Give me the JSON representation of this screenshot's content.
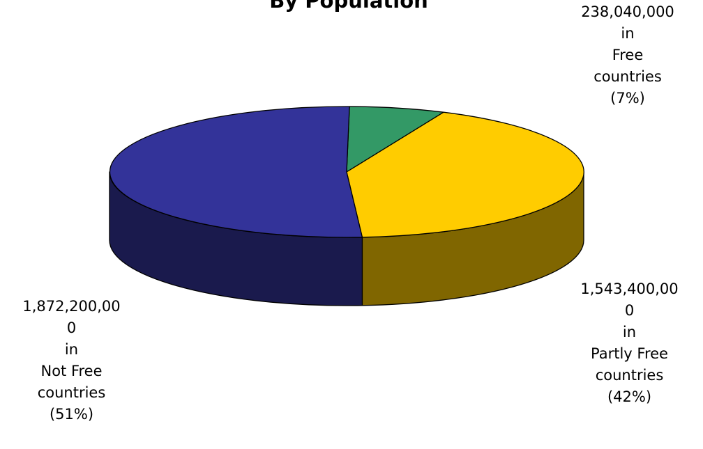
{
  "chart_data": {
    "type": "pie",
    "title": "By Population",
    "slices": [
      {
        "name": "Free",
        "value": 238040000,
        "value_text": "238,040,000",
        "percent": 7,
        "label_lines": [
          "238,040,000",
          "in",
          "Free",
          "countries",
          "(7%)"
        ],
        "top_color": "#339966",
        "side_color": "#1a4d33"
      },
      {
        "name": "Partly Free",
        "value": 1543400000,
        "value_text": "1,543,400,000",
        "percent": 42,
        "label_lines": [
          "1,543,400,00",
          "0",
          "in",
          "Partly Free",
          "countries",
          "(42%)"
        ],
        "top_color": "#FFCC00",
        "side_color": "#806600"
      },
      {
        "name": "Not Free",
        "value": 1872200000,
        "value_text": "1,872,200,000",
        "percent": 51,
        "label_lines": [
          "1,872,200,00",
          "0",
          "in",
          "Not Free",
          "countries",
          "(51%)"
        ],
        "top_color": "#333399",
        "side_color": "#1a1a4d"
      }
    ],
    "three_d": true,
    "legend": "none"
  }
}
